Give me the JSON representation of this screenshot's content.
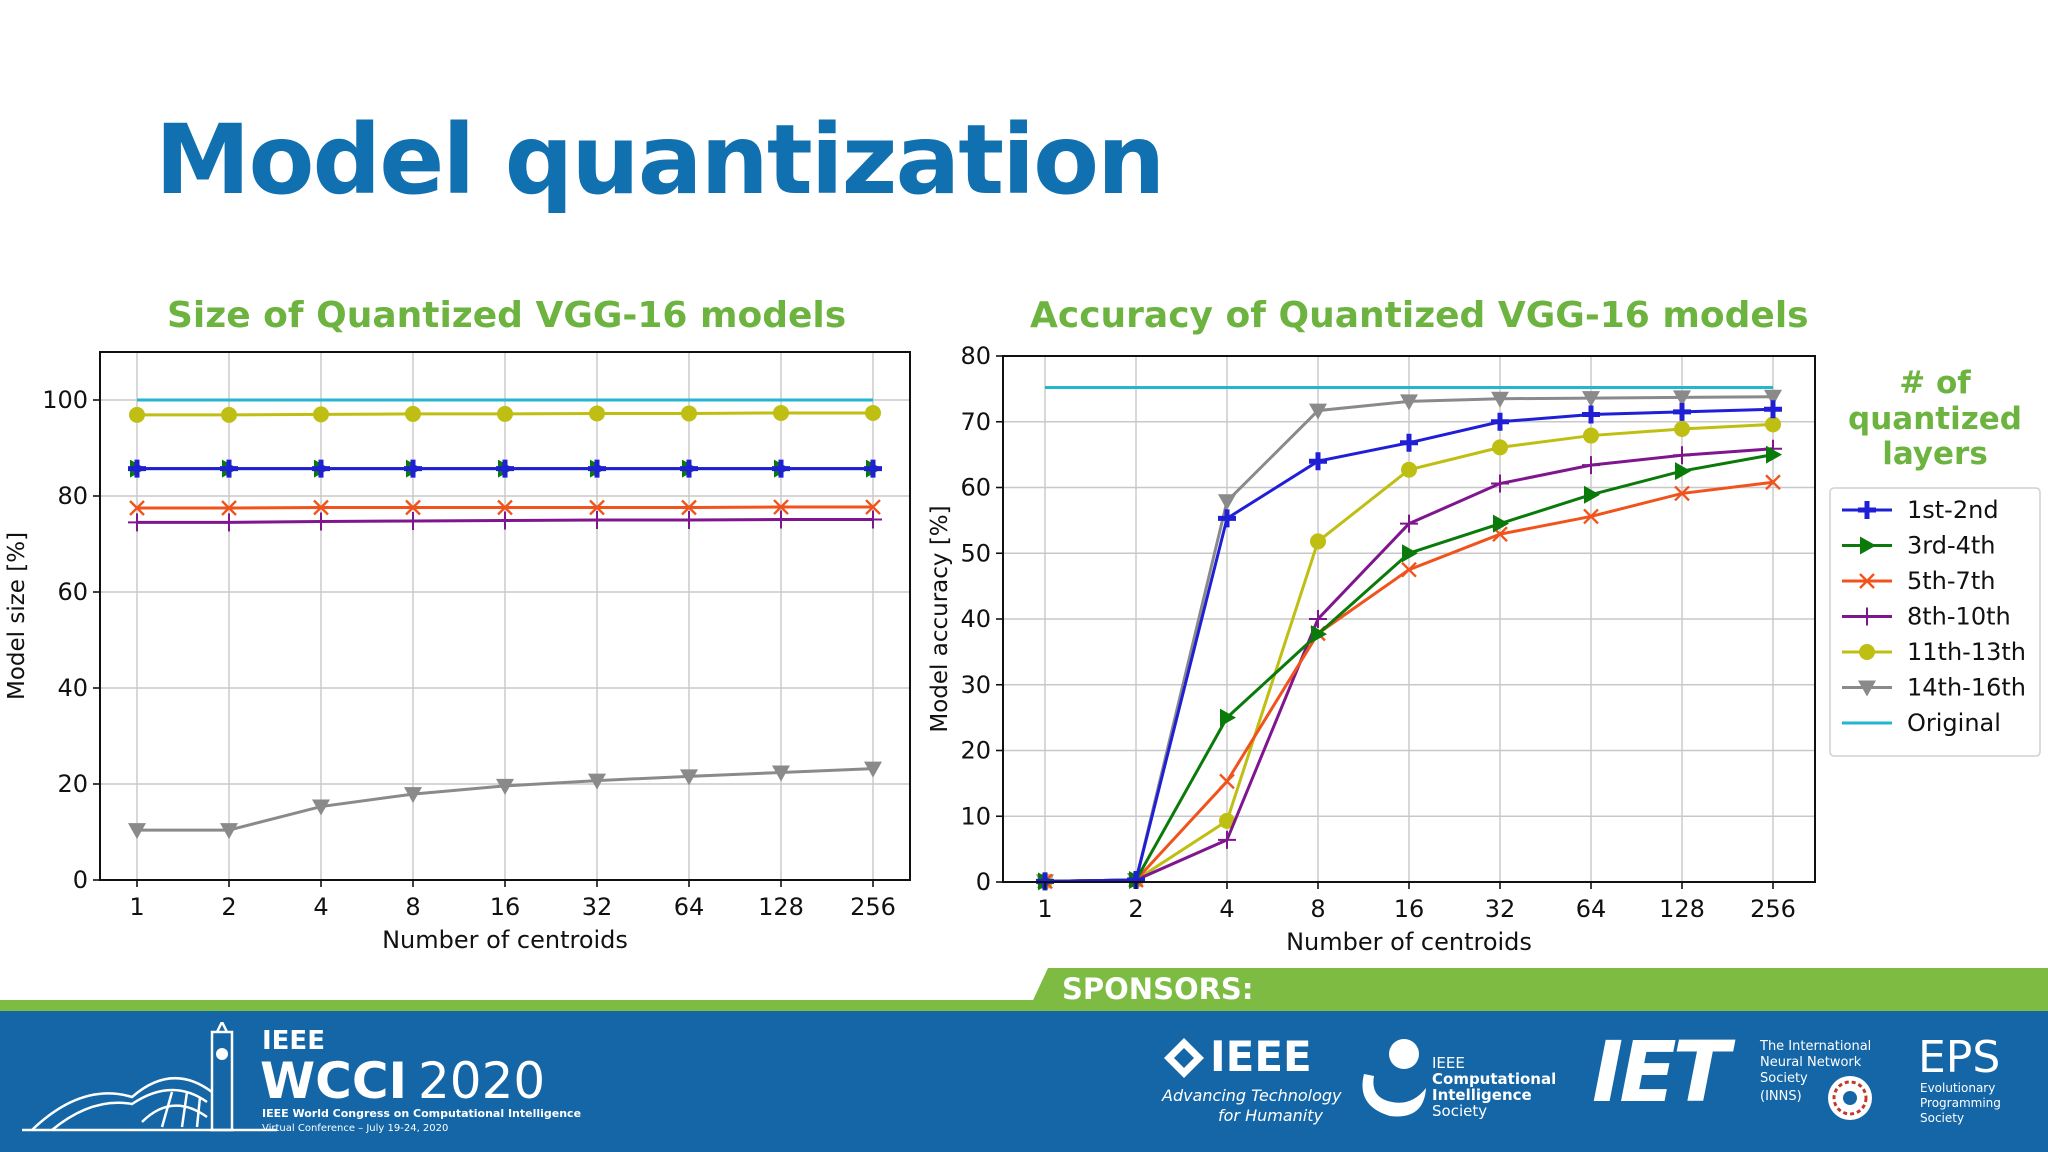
{
  "slide": {
    "title": "Model quantization"
  },
  "legend": {
    "title": "# of quantized layers",
    "title_lines": [
      "# of",
      "quantized",
      "layers"
    ],
    "entries": [
      {
        "label": "1st-2nd",
        "color": "#1f1fd6",
        "marker": "plus-thick"
      },
      {
        "label": "3rd-4th",
        "color": "#0a7a0a",
        "marker": "triangle-right"
      },
      {
        "label": "5th-7th",
        "color": "#f0541c",
        "marker": "x"
      },
      {
        "label": "8th-10th",
        "color": "#7f168e",
        "marker": "plus-thin"
      },
      {
        "label": "11th-13th",
        "color": "#bfbf13",
        "marker": "circle"
      },
      {
        "label": "14th-16th",
        "color": "#8a8a8a",
        "marker": "triangle-down"
      },
      {
        "label": "Original",
        "color": "#22b6cf",
        "marker": "none"
      }
    ]
  },
  "chart_data": [
    {
      "type": "line",
      "title": "Size of Quantized VGG-16 models",
      "xlabel": "Number of centroids",
      "ylabel": "Model size [%]",
      "x": [
        "1",
        "2",
        "4",
        "8",
        "16",
        "32",
        "64",
        "128",
        "256"
      ],
      "ylim": [
        0,
        110
      ],
      "yticks": [
        0,
        20,
        40,
        60,
        80,
        100
      ],
      "grid": true,
      "series": [
        {
          "name": "1st-2nd",
          "values": [
            85.7,
            85.7,
            85.7,
            85.7,
            85.7,
            85.7,
            85.7,
            85.7,
            85.7
          ]
        },
        {
          "name": "3rd-4th",
          "values": [
            85.7,
            85.7,
            85.7,
            85.7,
            85.7,
            85.7,
            85.7,
            85.7,
            85.7
          ]
        },
        {
          "name": "5th-7th",
          "values": [
            77.5,
            77.5,
            77.6,
            77.6,
            77.6,
            77.6,
            77.6,
            77.7,
            77.7
          ]
        },
        {
          "name": "8th-10th",
          "values": [
            74.5,
            74.5,
            74.7,
            74.8,
            74.9,
            75.0,
            75.0,
            75.1,
            75.1
          ]
        },
        {
          "name": "11th-13th",
          "values": [
            96.9,
            96.9,
            97.0,
            97.1,
            97.1,
            97.2,
            97.2,
            97.3,
            97.3
          ]
        },
        {
          "name": "14th-16th",
          "values": [
            10.4,
            10.4,
            15.3,
            17.9,
            19.6,
            20.7,
            21.6,
            22.4,
            23.2
          ]
        },
        {
          "name": "Original",
          "values": [
            100,
            100,
            100,
            100,
            100,
            100,
            100,
            100,
            100
          ]
        }
      ]
    },
    {
      "type": "line",
      "title": "Accuracy of Quantized VGG-16 models",
      "xlabel": "Number of centroids",
      "ylabel": "Model accuracy [%]",
      "x": [
        "1",
        "2",
        "4",
        "8",
        "16",
        "32",
        "64",
        "128",
        "256"
      ],
      "ylim": [
        0,
        80
      ],
      "yticks": [
        0,
        10,
        20,
        30,
        40,
        50,
        60,
        70,
        80
      ],
      "grid": true,
      "legend_position": "right, outside",
      "series": [
        {
          "name": "1st-2nd",
          "values": [
            0.1,
            0.3,
            55.3,
            64.0,
            66.8,
            70.0,
            71.1,
            71.5,
            71.9
          ]
        },
        {
          "name": "3rd-4th",
          "values": [
            0.1,
            0.3,
            25.0,
            37.7,
            50.0,
            54.5,
            58.9,
            62.5,
            65.0
          ]
        },
        {
          "name": "5th-7th",
          "values": [
            0.1,
            0.3,
            15.3,
            37.8,
            47.5,
            52.9,
            55.6,
            59.1,
            60.8
          ]
        },
        {
          "name": "8th-10th",
          "values": [
            0.1,
            0.3,
            6.4,
            40.0,
            54.5,
            60.6,
            63.4,
            64.9,
            65.9
          ]
        },
        {
          "name": "11th-13th",
          "values": [
            0.1,
            0.3,
            9.3,
            51.8,
            62.7,
            66.1,
            67.9,
            68.9,
            69.6
          ]
        },
        {
          "name": "14th-16th",
          "values": [
            0.1,
            0.3,
            57.9,
            71.7,
            73.1,
            73.5,
            73.6,
            73.7,
            73.8
          ]
        },
        {
          "name": "Original",
          "values": [
            75.2,
            75.2,
            75.2,
            75.2,
            75.2,
            75.2,
            75.2,
            75.2,
            75.2
          ]
        }
      ]
    }
  ],
  "sponsors": {
    "label": "SPONSORS:",
    "ieee": {
      "name": "IEEE",
      "tagline_1": "Advancing Technology",
      "tagline_2": "for Humanity"
    },
    "cis": {
      "line1": "IEEE",
      "line2": "Computational",
      "line3": "Intelligence",
      "line4": "Society"
    },
    "iet": {
      "name": "IET"
    },
    "inns": {
      "line1": "The International",
      "line2": "Neural Network",
      "line3": "Society",
      "line4": "(INNS)"
    },
    "eps": {
      "name": "EPS",
      "line1": "Evolutionary",
      "line2": "Programming",
      "line3": "Society"
    }
  },
  "conference": {
    "org": "IEEE",
    "name": "WCCI",
    "year": "2020",
    "full_name": "IEEE World Congress on Computational Intelligence",
    "subline": "Virtual Conference – July 19-24, 2020"
  }
}
